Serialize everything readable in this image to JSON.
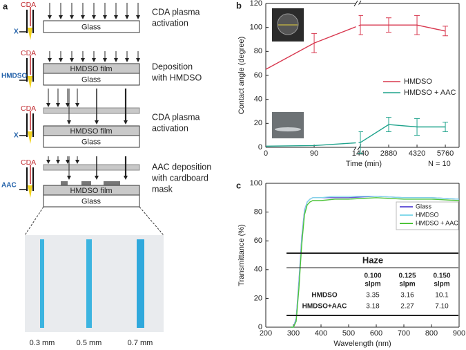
{
  "panel_a": {
    "label": "a",
    "stages": [
      {
        "gas": "CDA",
        "side": "X",
        "layers": [
          "Glass"
        ],
        "caption": [
          "CDA plasma",
          "activation"
        ]
      },
      {
        "gas": "CDA",
        "side": "HMDSO",
        "layers": [
          "HMDSO film",
          "Glass"
        ],
        "caption": [
          "Deposition",
          "with HMDSO"
        ]
      },
      {
        "gas": "CDA",
        "side": "X",
        "layers": [
          "HMDSO film",
          "Glass"
        ],
        "caption": [
          "CDA plasma",
          "activation"
        ]
      },
      {
        "gas": "CDA",
        "side": "AAC",
        "layers": [
          "HMDSO film",
          "Glass"
        ],
        "caption": [
          "AAC deposition",
          "with cardboard",
          "mask"
        ]
      }
    ],
    "widths": [
      "0.3 mm",
      "0.5 mm",
      "0.7 mm"
    ]
  },
  "chart_data": [
    {
      "type": "line",
      "panel": "b",
      "xlabel": "Time (min)",
      "ylabel": "Contact angle (degree)",
      "annotation": "N = 10",
      "xlims": [
        [
          0,
          167
        ],
        [
          1370,
          6460
        ]
      ],
      "xticks": [
        0,
        90,
        1440,
        2880,
        4320,
        5760
      ],
      "ylim": [
        0,
        120
      ],
      "yticks": [
        0,
        20,
        40,
        60,
        80,
        100,
        120
      ],
      "legend": "right",
      "x": [
        0,
        90,
        1440,
        2880,
        4320,
        5760
      ],
      "series": [
        {
          "name": "HMDSO",
          "color": "#d8384f",
          "values": [
            65,
            87,
            102,
            102,
            102,
            97
          ],
          "errors": [
            null,
            8,
            8,
            6,
            8,
            4
          ]
        },
        {
          "name": "HMDSO + AAC",
          "color": "#1fa38c",
          "values": [
            1,
            1.5,
            4,
            19,
            17,
            17
          ],
          "errors": [
            null,
            null,
            9,
            6,
            7,
            4
          ]
        }
      ]
    },
    {
      "type": "line",
      "panel": "c",
      "xlabel": "Wavelength (nm)",
      "ylabel": "Transmittance (%)",
      "xlim": [
        200,
        900
      ],
      "xticks": [
        200,
        300,
        400,
        500,
        600,
        700,
        800,
        900
      ],
      "ylim": [
        0,
        100
      ],
      "yticks": [
        0,
        20,
        40,
        60,
        80,
        100
      ],
      "legend": "upper right",
      "x": [
        290,
        300,
        310,
        320,
        330,
        340,
        350,
        360,
        370,
        380,
        400,
        450,
        500,
        600,
        700,
        800,
        900
      ],
      "series": [
        {
          "name": "Glass",
          "color": "#6a5ad8",
          "values": [
            0,
            0,
            6,
            32,
            62,
            81,
            87,
            89,
            90,
            90,
            90,
            90,
            90,
            91,
            90,
            90,
            89
          ]
        },
        {
          "name": "HMDSO",
          "color": "#84d9ea",
          "values": [
            0,
            0,
            5,
            30,
            60,
            80,
            87,
            89,
            90,
            90,
            90,
            91,
            91,
            91,
            90,
            90,
            89
          ]
        },
        {
          "name": "HMDSO + AAC",
          "color": "#4fc43a",
          "values": [
            0,
            0,
            4,
            27,
            57,
            78,
            85,
            87,
            88,
            88,
            88,
            89,
            89,
            90,
            89,
            89,
            88
          ]
        }
      ],
      "table": {
        "title": "Haze",
        "columns": [
          [
            "0.100",
            "slpm"
          ],
          [
            "0.125",
            "slpm"
          ],
          [
            "0.150",
            "slpm"
          ]
        ],
        "rows": [
          [
            "HMDSO",
            "3.35",
            "3.16",
            "10.1"
          ],
          [
            "HMDSO+AAC",
            "3.18",
            "2.27",
            "7.10"
          ]
        ]
      }
    }
  ]
}
